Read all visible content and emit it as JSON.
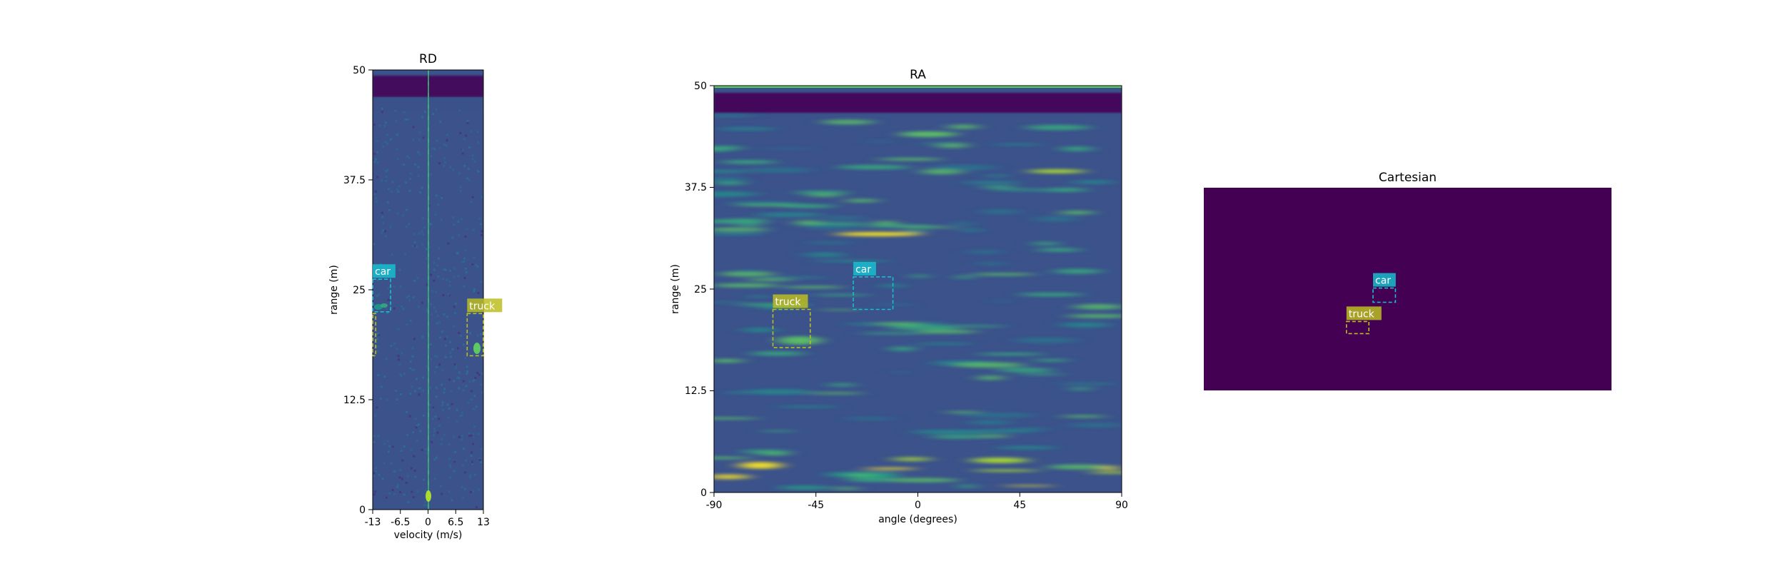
{
  "chart_data": [
    {
      "type": "heatmap",
      "title": "RD",
      "xlabel": "velocity (m/s)",
      "ylabel": "range (m)",
      "xlim": [
        -13,
        13
      ],
      "ylim": [
        0,
        50
      ],
      "xticks": [
        "-13",
        "-6.5",
        "0",
        "6.5",
        "13"
      ],
      "yticks": [
        "0",
        "12.5",
        "25",
        "37.5",
        "50"
      ],
      "colormap": "viridis",
      "boxes": [
        {
          "label": "car",
          "color": "#17becf",
          "x0": -13,
          "x1": -8.8,
          "y0": 22.5,
          "y1": 26.2
        },
        {
          "label": "truck",
          "color": "#bcbd22",
          "x0": 9.2,
          "x1": 13,
          "y0": 17.5,
          "y1": 22.3
        },
        {
          "label": "",
          "color": "#bcbd22",
          "x0": -13,
          "x1": -12.3,
          "y0": 17.5,
          "y1": 22.3
        }
      ]
    },
    {
      "type": "heatmap",
      "title": "RA",
      "xlabel": "angle (degrees)",
      "ylabel": "range (m)",
      "xlim": [
        -90,
        90
      ],
      "ylim": [
        0,
        50
      ],
      "xticks": [
        "-90",
        "-45",
        "0",
        "45",
        "90"
      ],
      "yticks": [
        "0",
        "12.5",
        "25",
        "37.5",
        "50"
      ],
      "colormap": "viridis",
      "boxes": [
        {
          "label": "car",
          "color": "#17becf",
          "x0": -28.5,
          "x1": -11,
          "y0": 22.5,
          "y1": 26.5
        },
        {
          "label": "truck",
          "color": "#bcbd22",
          "x0": -64,
          "x1": -47.5,
          "y0": 17.8,
          "y1": 22.5
        }
      ]
    },
    {
      "type": "heatmap",
      "title": "Cartesian",
      "background": "#440154",
      "xlim": [
        0,
        100
      ],
      "ylim": [
        0,
        100
      ],
      "boxes": [
        {
          "label": "car",
          "color": "#17becf",
          "x0": 41.5,
          "x1": 47,
          "y0": 43.5,
          "y1": 50.5
        },
        {
          "label": "truck",
          "color": "#bcbd22",
          "x0": 35,
          "x1": 40.5,
          "y0": 28,
          "y1": 34
        }
      ]
    }
  ]
}
